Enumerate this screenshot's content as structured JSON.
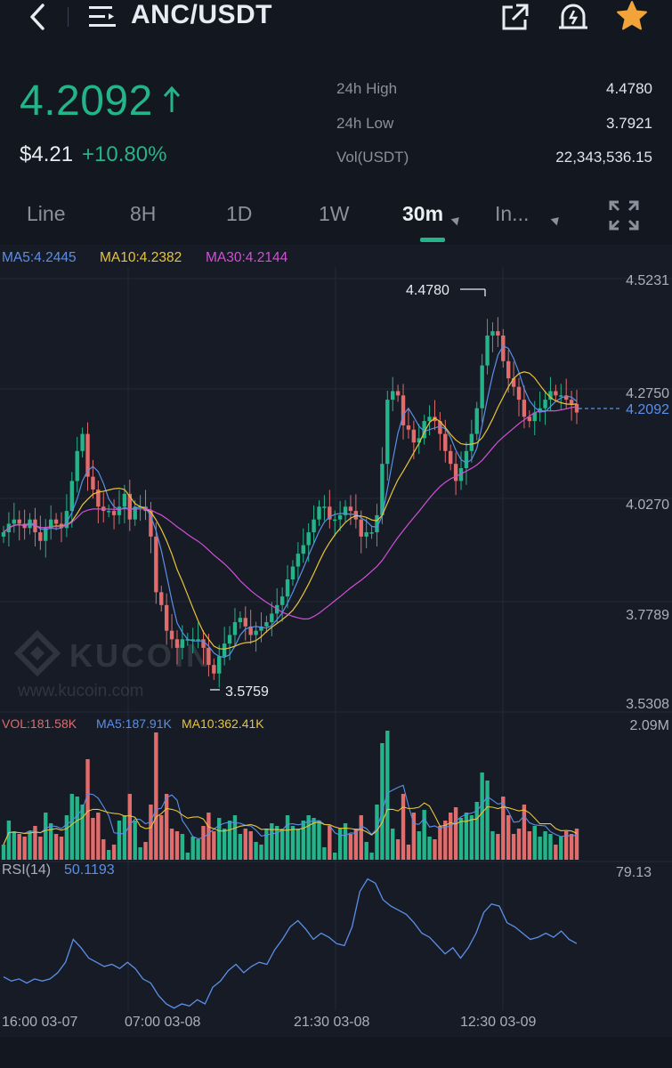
{
  "header": {
    "pair": "ANC/USDT",
    "icons": [
      "back-icon",
      "menu-icon",
      "share-icon",
      "price-alert-icon",
      "favorite-star-icon"
    ]
  },
  "ticker": {
    "last_price": "4.2092",
    "usd_price": "$4.21",
    "change_pct": "+10.80%",
    "stats": [
      {
        "label": "24h High",
        "value": "4.4780"
      },
      {
        "label": "24h Low",
        "value": "3.7921"
      },
      {
        "label": "Vol(USDT)",
        "value": "22,343,536.15"
      }
    ]
  },
  "tabs": [
    {
      "label": "Line"
    },
    {
      "label": "8H"
    },
    {
      "label": "1D"
    },
    {
      "label": "1W"
    },
    {
      "label": "30m",
      "active": true
    },
    {
      "label": "In..."
    }
  ],
  "legend": {
    "ma5": "MA5:4.2445",
    "ma10": "MA10:4.2382",
    "ma30": "MA30:4.2144",
    "vol": "VOL:181.58K",
    "vol_ma5": "MA5:187.91K",
    "vol_ma10": "MA10:362.41K",
    "rsi_label": "RSI(14)",
    "rsi_value": "50.1193"
  },
  "watermark": {
    "brand": "KUCOIN",
    "url": "www.kucoin.com"
  },
  "colors": {
    "up": "#24b48a",
    "down": "#e06c6c",
    "ma5": "#5b8fe8",
    "ma10": "#e8c43a",
    "ma30": "#d24fd8",
    "background": "#161b25"
  },
  "chart_data": {
    "type": "candlestick",
    "price_axis_ticks": [
      "4.5231",
      "4.2750",
      "4.0270",
      "3.7789",
      "3.5308"
    ],
    "last_price_marker": "4.2092",
    "high_marker": "4.4780",
    "low_marker": "3.5759",
    "volume_axis_max": "2.09M",
    "rsi_axis_max": "79.13",
    "x_tick_labels": [
      "16:00 03-07",
      "07:00 03-08",
      "21:30 03-08",
      "12:30 03-09"
    ],
    "candles_close": [
      3.93,
      3.95,
      3.96,
      3.95,
      3.94,
      3.96,
      3.93,
      3.91,
      3.94,
      3.96,
      3.95,
      3.94,
      3.98,
      4.05,
      4.12,
      4.16,
      4.06,
      4.03,
      3.99,
      3.98,
      3.98,
      3.97,
      3.99,
      4.02,
      3.96,
      3.99,
      3.99,
      3.98,
      3.92,
      3.79,
      3.76,
      3.7,
      3.68,
      3.66,
      3.68,
      3.68,
      3.68,
      3.68,
      3.66,
      3.62,
      3.6,
      3.64,
      3.67,
      3.69,
      3.72,
      3.73,
      3.71,
      3.69,
      3.7,
      3.71,
      3.72,
      3.74,
      3.76,
      3.78,
      3.82,
      3.85,
      3.88,
      3.9,
      3.93,
      3.96,
      3.99,
      3.99,
      3.96,
      3.96,
      3.97,
      3.99,
      3.98,
      3.96,
      3.92,
      3.93,
      3.93,
      3.97,
      4.09,
      4.24,
      4.26,
      4.25,
      4.18,
      4.17,
      4.14,
      4.15,
      4.19,
      4.2,
      4.19,
      4.16,
      4.12,
      4.09,
      4.05,
      4.08,
      4.12,
      4.16,
      4.22,
      4.32,
      4.39,
      4.4,
      4.39,
      4.33,
      4.29,
      4.27,
      4.24,
      4.2,
      4.19,
      4.21,
      4.22,
      4.24,
      4.26,
      4.25,
      4.25,
      4.24,
      4.23,
      4.21
    ],
    "rsi_values": [
      31,
      29,
      30,
      28,
      30,
      29,
      30,
      33,
      38,
      49,
      45,
      40,
      38,
      36,
      37,
      35,
      38,
      35,
      30,
      28,
      22,
      18,
      16,
      18,
      17,
      20,
      18,
      26,
      29,
      34,
      37,
      33,
      36,
      38,
      37,
      44,
      49,
      55,
      58,
      54,
      49,
      52,
      50,
      47,
      46,
      55,
      72,
      78,
      76,
      68,
      65,
      63,
      61,
      57,
      52,
      50,
      46,
      42,
      45,
      40,
      45,
      52,
      62,
      66,
      65,
      57,
      55,
      52,
      49,
      50,
      52,
      50,
      53,
      49,
      47
    ]
  }
}
